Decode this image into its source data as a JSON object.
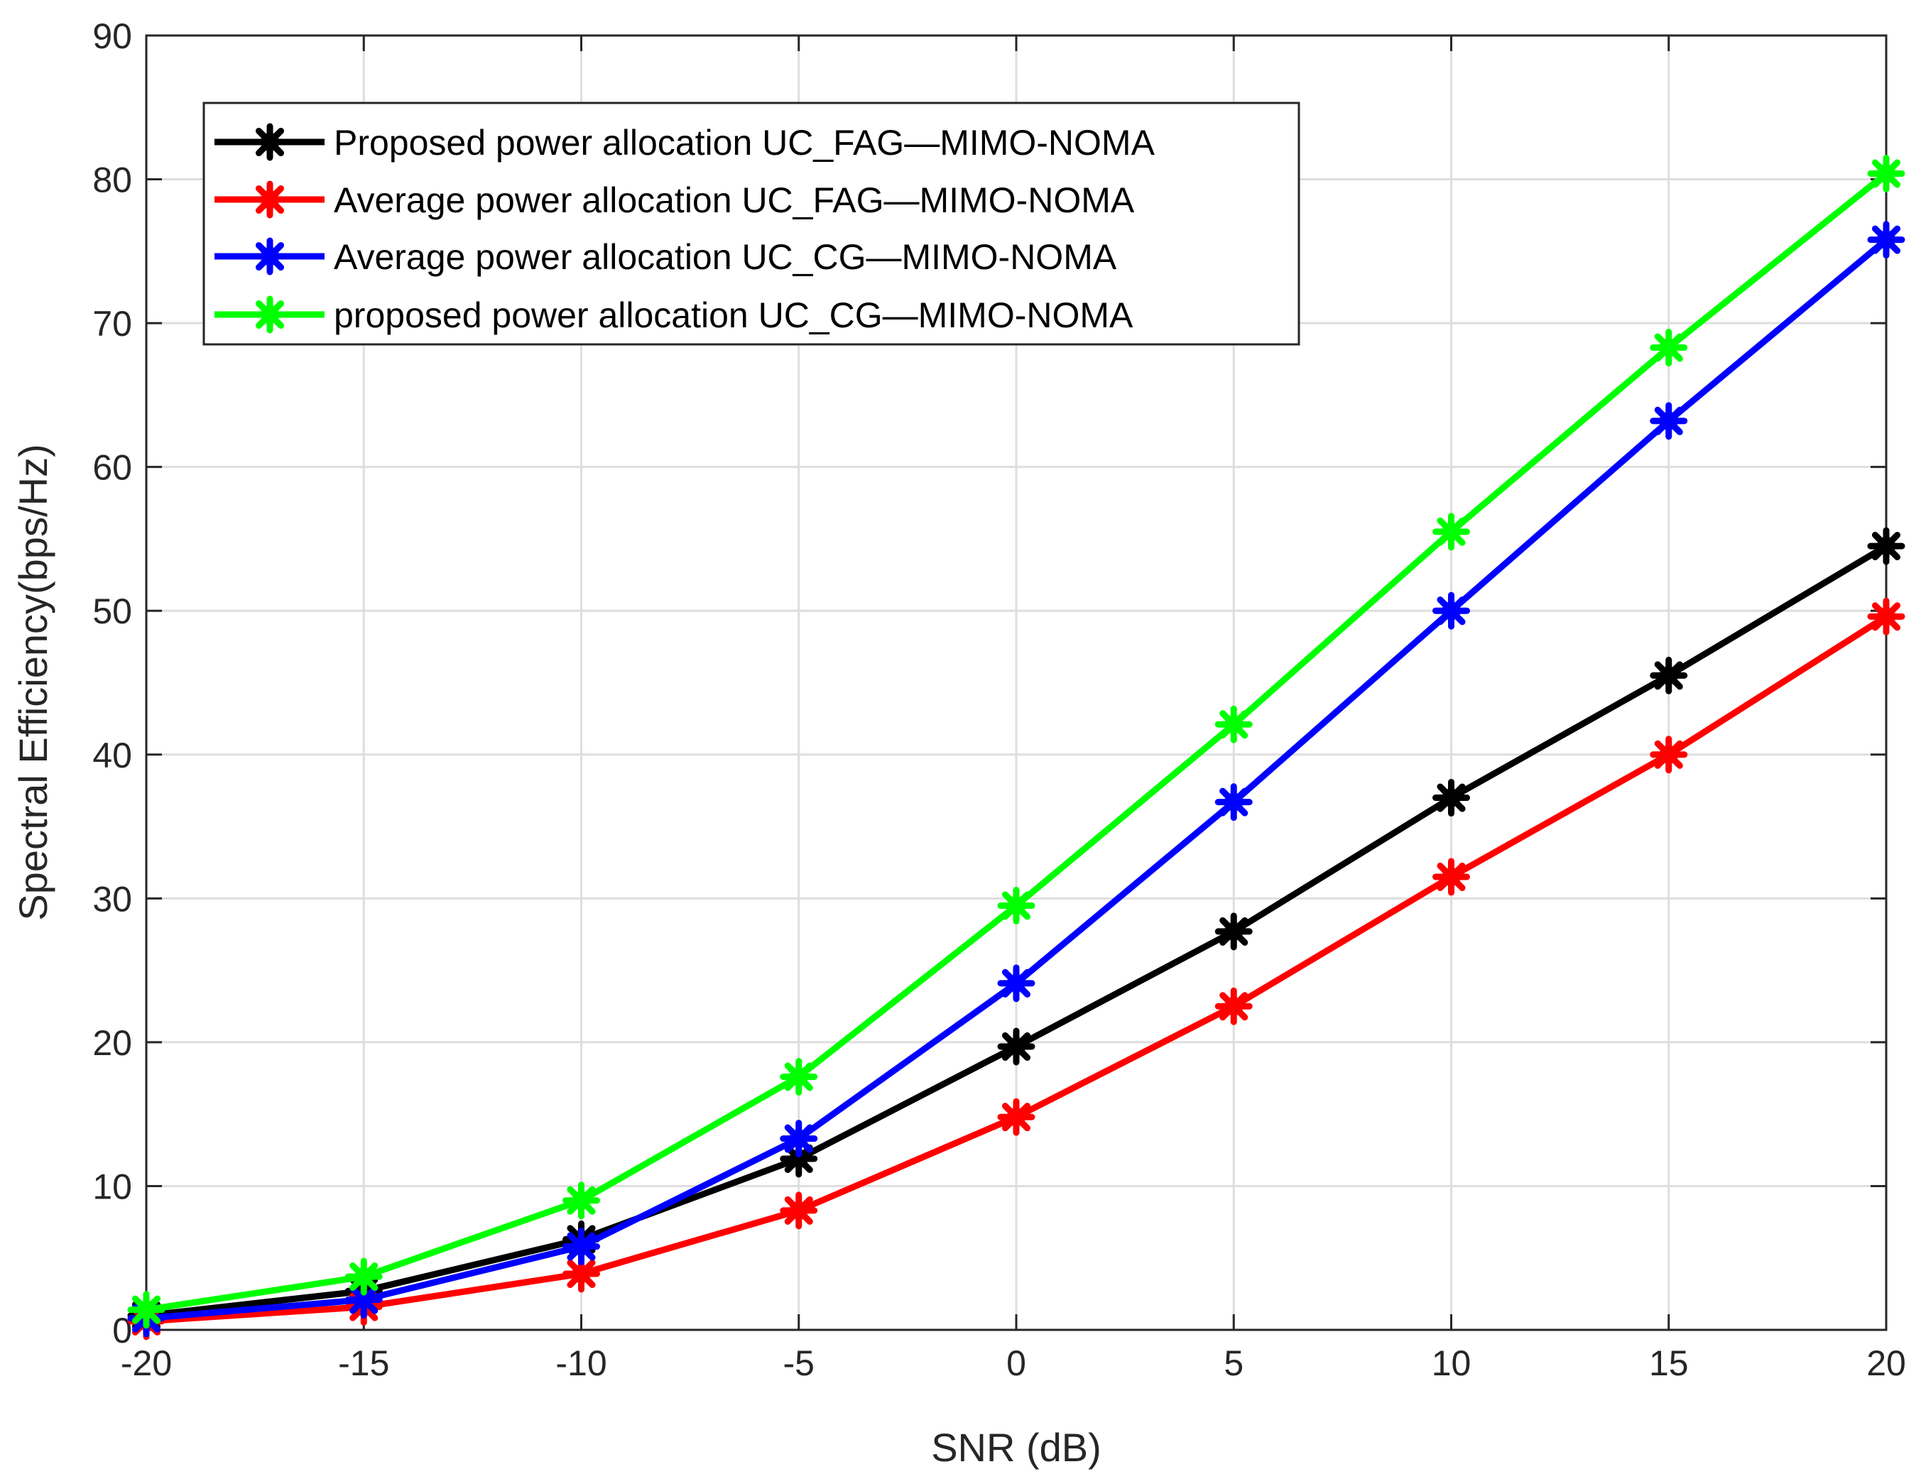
{
  "chart_data": {
    "type": "line",
    "title": "",
    "xlabel": "SNR (dB)",
    "ylabel": "Spectral Efficiency(bps/Hz)",
    "x": [
      -20,
      -15,
      -10,
      -5,
      0,
      5,
      10,
      15,
      20
    ],
    "xlim": [
      -20,
      20
    ],
    "ylim": [
      0,
      90
    ],
    "xticks": [
      -20,
      -15,
      -10,
      -5,
      0,
      5,
      10,
      15,
      20
    ],
    "yticks": [
      0,
      10,
      20,
      30,
      40,
      50,
      60,
      70,
      80,
      90
    ],
    "grid": true,
    "legend_position": "top-left",
    "marker": "asterisk",
    "series": [
      {
        "name": "Proposed power allocation UC_FAG—MIMO-NOMA",
        "color": "#000000",
        "values": [
          1.0,
          2.7,
          6.3,
          11.9,
          19.7,
          27.7,
          37.0,
          45.5,
          54.5
        ]
      },
      {
        "name": "Average power allocation UC_FAG—MIMO-NOMA",
        "color": "#ff0000",
        "values": [
          0.6,
          1.6,
          3.9,
          8.3,
          14.8,
          22.5,
          31.5,
          40.0,
          49.6
        ]
      },
      {
        "name": "Average power allocation UC_CG—MIMO-NOMA",
        "color": "#0000ff",
        "values": [
          0.8,
          2.1,
          5.8,
          13.3,
          24.1,
          36.7,
          50.0,
          63.2,
          75.8
        ]
      },
      {
        "name": "proposed power allocation UC_CG—MIMO-NOMA",
        "color": "#00ff00",
        "values": [
          1.4,
          3.7,
          9.0,
          17.6,
          29.5,
          42.1,
          55.5,
          68.3,
          80.4
        ]
      }
    ]
  }
}
